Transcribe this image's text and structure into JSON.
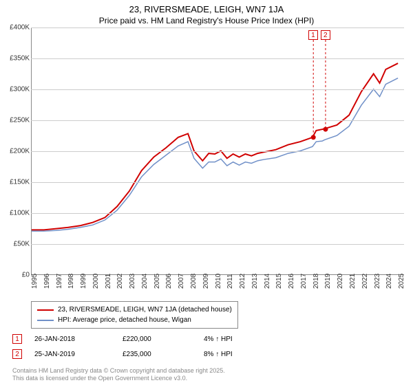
{
  "title": {
    "line1": "23, RIVERSMEADE, LEIGH, WN7 1JA",
    "line2": "Price paid vs. HM Land Registry's House Price Index (HPI)"
  },
  "chart": {
    "type": "line",
    "ylim": [
      0,
      400000
    ],
    "ytick_step": 50000,
    "y_ticks": [
      "£0",
      "£50K",
      "£100K",
      "£150K",
      "£200K",
      "£250K",
      "£300K",
      "£350K",
      "£400K"
    ],
    "x_years": [
      "1995",
      "1996",
      "1997",
      "1998",
      "1999",
      "2000",
      "2001",
      "2002",
      "2003",
      "2004",
      "2005",
      "2006",
      "2007",
      "2008",
      "2009",
      "2010",
      "2011",
      "2012",
      "2013",
      "2014",
      "2015",
      "2016",
      "2017",
      "2018",
      "2019",
      "2020",
      "2021",
      "2022",
      "2023",
      "2024",
      "2025"
    ],
    "xrange": [
      1995,
      2025.5
    ],
    "grid_color": "#cccccc",
    "axis_color": "#888888",
    "background_color": "#ffffff",
    "series": [
      {
        "name": "23, RIVERSMEADE, LEIGH, WN7 1JA (detached house)",
        "color": "#d00000",
        "width": 2,
        "points": [
          [
            1995,
            72000
          ],
          [
            1996,
            72000
          ],
          [
            1997,
            74000
          ],
          [
            1998,
            76000
          ],
          [
            1999,
            79000
          ],
          [
            2000,
            84000
          ],
          [
            2001,
            92000
          ],
          [
            2002,
            110000
          ],
          [
            2003,
            135000
          ],
          [
            2004,
            168000
          ],
          [
            2005,
            190000
          ],
          [
            2006,
            205000
          ],
          [
            2007,
            222000
          ],
          [
            2007.8,
            228000
          ],
          [
            2008.3,
            200000
          ],
          [
            2009,
            184000
          ],
          [
            2009.5,
            196000
          ],
          [
            2010,
            195000
          ],
          [
            2010.5,
            200000
          ],
          [
            2011,
            188000
          ],
          [
            2011.5,
            195000
          ],
          [
            2012,
            190000
          ],
          [
            2012.5,
            195000
          ],
          [
            2013,
            192000
          ],
          [
            2013.5,
            196000
          ],
          [
            2014,
            198000
          ],
          [
            2015,
            202000
          ],
          [
            2016,
            210000
          ],
          [
            2017,
            215000
          ],
          [
            2018,
            222000
          ],
          [
            2018.3,
            233000
          ],
          [
            2018.8,
            235000
          ],
          [
            2019,
            236000
          ],
          [
            2020,
            242000
          ],
          [
            2021,
            258000
          ],
          [
            2022,
            296000
          ],
          [
            2023,
            325000
          ],
          [
            2023.5,
            310000
          ],
          [
            2024,
            332000
          ],
          [
            2025,
            342000
          ]
        ]
      },
      {
        "name": "HPI: Average price, detached house, Wigan",
        "color": "#7090c8",
        "width": 1.5,
        "points": [
          [
            1995,
            70000
          ],
          [
            1996,
            70000
          ],
          [
            1997,
            71000
          ],
          [
            1998,
            73000
          ],
          [
            1999,
            76000
          ],
          [
            2000,
            80000
          ],
          [
            2001,
            88000
          ],
          [
            2002,
            104000
          ],
          [
            2003,
            128000
          ],
          [
            2004,
            158000
          ],
          [
            2005,
            178000
          ],
          [
            2006,
            193000
          ],
          [
            2007,
            208000
          ],
          [
            2007.8,
            215000
          ],
          [
            2008.3,
            188000
          ],
          [
            2009,
            172000
          ],
          [
            2009.5,
            182000
          ],
          [
            2010,
            182000
          ],
          [
            2010.5,
            187000
          ],
          [
            2011,
            176000
          ],
          [
            2011.5,
            182000
          ],
          [
            2012,
            177000
          ],
          [
            2012.5,
            182000
          ],
          [
            2013,
            180000
          ],
          [
            2013.5,
            184000
          ],
          [
            2014,
            186000
          ],
          [
            2015,
            189000
          ],
          [
            2016,
            196000
          ],
          [
            2017,
            200000
          ],
          [
            2018,
            207000
          ],
          [
            2018.3,
            215000
          ],
          [
            2018.8,
            216000
          ],
          [
            2019,
            218000
          ],
          [
            2020,
            225000
          ],
          [
            2021,
            240000
          ],
          [
            2022,
            274000
          ],
          [
            2023,
            300000
          ],
          [
            2023.5,
            288000
          ],
          [
            2024,
            308000
          ],
          [
            2025,
            318000
          ]
        ]
      }
    ],
    "annotations": [
      {
        "label": "1",
        "x": 2018.07,
        "y_top": 0,
        "point_y": 222000
      },
      {
        "label": "2",
        "x": 2019.07,
        "y_top": 0,
        "point_y": 235000
      }
    ]
  },
  "legend": [
    {
      "color": "#d00000",
      "label": "23, RIVERSMEADE, LEIGH, WN7 1JA (detached house)"
    },
    {
      "color": "#7090c8",
      "label": "HPI: Average price, detached house, Wigan"
    }
  ],
  "sales": [
    {
      "marker": "1",
      "date": "26-JAN-2018",
      "price": "£220,000",
      "delta": "4% ↑ HPI"
    },
    {
      "marker": "2",
      "date": "25-JAN-2019",
      "price": "£235,000",
      "delta": "8% ↑ HPI"
    }
  ],
  "footer": {
    "line1": "Contains HM Land Registry data © Crown copyright and database right 2025.",
    "line2": "This data is licensed under the Open Government Licence v3.0."
  }
}
